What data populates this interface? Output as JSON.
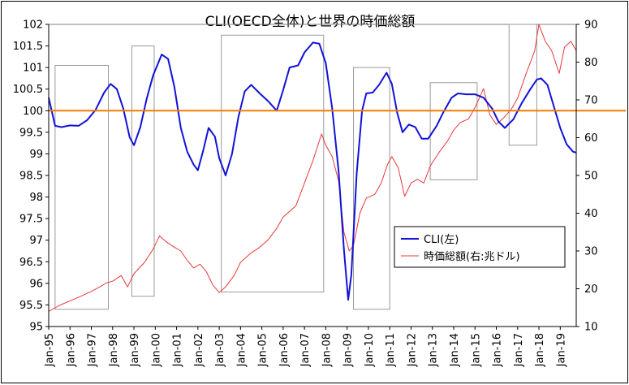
{
  "chart_data": {
    "type": "line",
    "title": "CLI(OECD全体)と世界の時価総額",
    "left_axis": {
      "min": 95,
      "max": 102,
      "ticks": [
        "95",
        "95.5",
        "96",
        "96.5",
        "97",
        "97.5",
        "98",
        "98.5",
        "99",
        "99.5",
        "100",
        "100.5",
        "101",
        "101.5",
        "102"
      ]
    },
    "right_axis": {
      "min": 10,
      "max": 90,
      "ticks": [
        "10",
        "20",
        "30",
        "40",
        "50",
        "60",
        "70",
        "80",
        "90"
      ]
    },
    "x_axis": {
      "start_year": 1995,
      "end_year": 2019.75,
      "tick_labels": [
        "Jan-95",
        "Jan-96",
        "Jan-97",
        "Jan-98",
        "Jan-99",
        "Jan-00",
        "Jan-01",
        "Jan-02",
        "Jan-03",
        "Jan-04",
        "Jan-05",
        "Jan-06",
        "Jan-07",
        "Jan-08",
        "Jan-09",
        "Jan-10",
        "Jan-11",
        "Jan-12",
        "Jan-13",
        "Jan-14",
        "Jan-15",
        "Jan-16",
        "Jan-17",
        "Jan-18",
        "Jan-19"
      ]
    },
    "reference_line": {
      "axis": "left",
      "value": 100,
      "color": "#f07c00"
    },
    "highlight_periods": [
      [
        1995.3,
        1997.8
      ],
      [
        1998.9,
        1999.95
      ],
      [
        2003.1,
        2007.9
      ],
      [
        2009.3,
        2011.0
      ],
      [
        2012.9,
        2015.1
      ],
      [
        2016.6,
        2017.9
      ]
    ],
    "highlight_ranges": [
      [
        95.4,
        101.05
      ],
      [
        95.7,
        101.5
      ],
      [
        95.8,
        101.75
      ],
      [
        95.4,
        101.0
      ],
      [
        98.4,
        100.65
      ],
      [
        99.2,
        102.0
      ]
    ],
    "series": [
      {
        "name": "CLI(左)",
        "axis": "left",
        "color": "#1212d8",
        "points": [
          [
            1995.0,
            100.3
          ],
          [
            1995.3,
            99.65
          ],
          [
            1995.6,
            99.62
          ],
          [
            1996.0,
            99.66
          ],
          [
            1996.4,
            99.65
          ],
          [
            1996.8,
            99.78
          ],
          [
            1997.2,
            100.02
          ],
          [
            1997.6,
            100.42
          ],
          [
            1997.9,
            100.62
          ],
          [
            1998.2,
            100.5
          ],
          [
            1998.5,
            100.05
          ],
          [
            1998.8,
            99.38
          ],
          [
            1999.0,
            99.2
          ],
          [
            1999.3,
            99.62
          ],
          [
            1999.6,
            100.28
          ],
          [
            1999.9,
            100.82
          ],
          [
            2000.3,
            101.3
          ],
          [
            2000.6,
            101.2
          ],
          [
            2000.9,
            100.55
          ],
          [
            2001.2,
            99.6
          ],
          [
            2001.5,
            99.05
          ],
          [
            2001.8,
            98.75
          ],
          [
            2002.0,
            98.62
          ],
          [
            2002.25,
            99.08
          ],
          [
            2002.5,
            99.6
          ],
          [
            2002.8,
            99.4
          ],
          [
            2003.0,
            98.9
          ],
          [
            2003.3,
            98.5
          ],
          [
            2003.6,
            99.0
          ],
          [
            2003.9,
            99.85
          ],
          [
            2004.2,
            100.45
          ],
          [
            2004.5,
            100.6
          ],
          [
            2004.9,
            100.4
          ],
          [
            2005.3,
            100.22
          ],
          [
            2005.7,
            100.0
          ],
          [
            2006.0,
            100.48
          ],
          [
            2006.3,
            101.0
          ],
          [
            2006.7,
            101.05
          ],
          [
            2007.0,
            101.35
          ],
          [
            2007.4,
            101.58
          ],
          [
            2007.7,
            101.55
          ],
          [
            2008.0,
            101.1
          ],
          [
            2008.3,
            100.05
          ],
          [
            2008.6,
            98.6
          ],
          [
            2008.85,
            96.8
          ],
          [
            2009.05,
            95.62
          ],
          [
            2009.2,
            96.2
          ],
          [
            2009.45,
            98.55
          ],
          [
            2009.7,
            100.0
          ],
          [
            2009.9,
            100.4
          ],
          [
            2010.2,
            100.42
          ],
          [
            2010.5,
            100.6
          ],
          [
            2010.85,
            100.88
          ],
          [
            2011.1,
            100.62
          ],
          [
            2011.35,
            99.95
          ],
          [
            2011.6,
            99.5
          ],
          [
            2011.9,
            99.68
          ],
          [
            2012.2,
            99.62
          ],
          [
            2012.5,
            99.35
          ],
          [
            2012.8,
            99.35
          ],
          [
            2013.2,
            99.65
          ],
          [
            2013.5,
            99.95
          ],
          [
            2013.9,
            100.3
          ],
          [
            2014.2,
            100.4
          ],
          [
            2014.6,
            100.38
          ],
          [
            2015.0,
            100.38
          ],
          [
            2015.4,
            100.3
          ],
          [
            2015.8,
            100.05
          ],
          [
            2016.1,
            99.75
          ],
          [
            2016.4,
            99.6
          ],
          [
            2016.8,
            99.8
          ],
          [
            2017.2,
            100.18
          ],
          [
            2017.6,
            100.5
          ],
          [
            2017.9,
            100.72
          ],
          [
            2018.1,
            100.75
          ],
          [
            2018.4,
            100.6
          ],
          [
            2018.7,
            100.1
          ],
          [
            2019.0,
            99.6
          ],
          [
            2019.3,
            99.22
          ],
          [
            2019.6,
            99.05
          ],
          [
            2019.75,
            99.03
          ]
        ]
      },
      {
        "name": "時価総額(右:兆ドル)",
        "axis": "right",
        "color": "#e8383d",
        "points": [
          [
            1995.0,
            14.0
          ],
          [
            1995.5,
            15.6
          ],
          [
            1996.0,
            16.8
          ],
          [
            1996.5,
            18.0
          ],
          [
            1997.0,
            19.3
          ],
          [
            1997.4,
            20.5
          ],
          [
            1997.7,
            21.5
          ],
          [
            1998.0,
            22.0
          ],
          [
            1998.4,
            23.5
          ],
          [
            1998.7,
            20.5
          ],
          [
            1999.0,
            24.0
          ],
          [
            1999.5,
            27.0
          ],
          [
            1999.9,
            30.5
          ],
          [
            2000.2,
            34.0
          ],
          [
            2000.5,
            32.5
          ],
          [
            2000.9,
            31.0
          ],
          [
            2001.2,
            30.0
          ],
          [
            2001.5,
            27.5
          ],
          [
            2001.8,
            25.5
          ],
          [
            2002.1,
            26.5
          ],
          [
            2002.4,
            24.5
          ],
          [
            2002.7,
            21.0
          ],
          [
            2003.0,
            19.0
          ],
          [
            2003.3,
            20.5
          ],
          [
            2003.7,
            23.5
          ],
          [
            2004.0,
            27.0
          ],
          [
            2004.5,
            29.5
          ],
          [
            2004.9,
            31.0
          ],
          [
            2005.3,
            33.0
          ],
          [
            2005.7,
            36.0
          ],
          [
            2006.0,
            39.0
          ],
          [
            2006.3,
            40.5
          ],
          [
            2006.6,
            42.0
          ],
          [
            2007.0,
            48.0
          ],
          [
            2007.4,
            54.0
          ],
          [
            2007.8,
            61.0
          ],
          [
            2008.0,
            58.0
          ],
          [
            2008.3,
            55.0
          ],
          [
            2008.6,
            48.5
          ],
          [
            2008.85,
            35.0
          ],
          [
            2009.1,
            30.0
          ],
          [
            2009.3,
            31.5
          ],
          [
            2009.6,
            40.0
          ],
          [
            2009.9,
            44.0
          ],
          [
            2010.3,
            45.0
          ],
          [
            2010.6,
            48.0
          ],
          [
            2010.9,
            53.0
          ],
          [
            2011.1,
            55.0
          ],
          [
            2011.4,
            52.0
          ],
          [
            2011.7,
            44.5
          ],
          [
            2012.0,
            48.0
          ],
          [
            2012.3,
            49.0
          ],
          [
            2012.6,
            48.0
          ],
          [
            2012.9,
            52.5
          ],
          [
            2013.3,
            56.0
          ],
          [
            2013.7,
            59.0
          ],
          [
            2014.0,
            62.0
          ],
          [
            2014.3,
            64.0
          ],
          [
            2014.7,
            65.0
          ],
          [
            2015.0,
            68.0
          ],
          [
            2015.4,
            73.0
          ],
          [
            2015.7,
            66.0
          ],
          [
            2016.0,
            63.5
          ],
          [
            2016.3,
            65.0
          ],
          [
            2016.7,
            67.5
          ],
          [
            2017.0,
            70.5
          ],
          [
            2017.4,
            77.0
          ],
          [
            2017.8,
            83.0
          ],
          [
            2018.0,
            90.0
          ],
          [
            2018.3,
            85.5
          ],
          [
            2018.6,
            83.0
          ],
          [
            2018.95,
            77.0
          ],
          [
            2019.2,
            84.0
          ],
          [
            2019.5,
            85.5
          ],
          [
            2019.75,
            83.0
          ]
        ]
      }
    ],
    "legend": {
      "position": "inside-lower-right"
    }
  }
}
